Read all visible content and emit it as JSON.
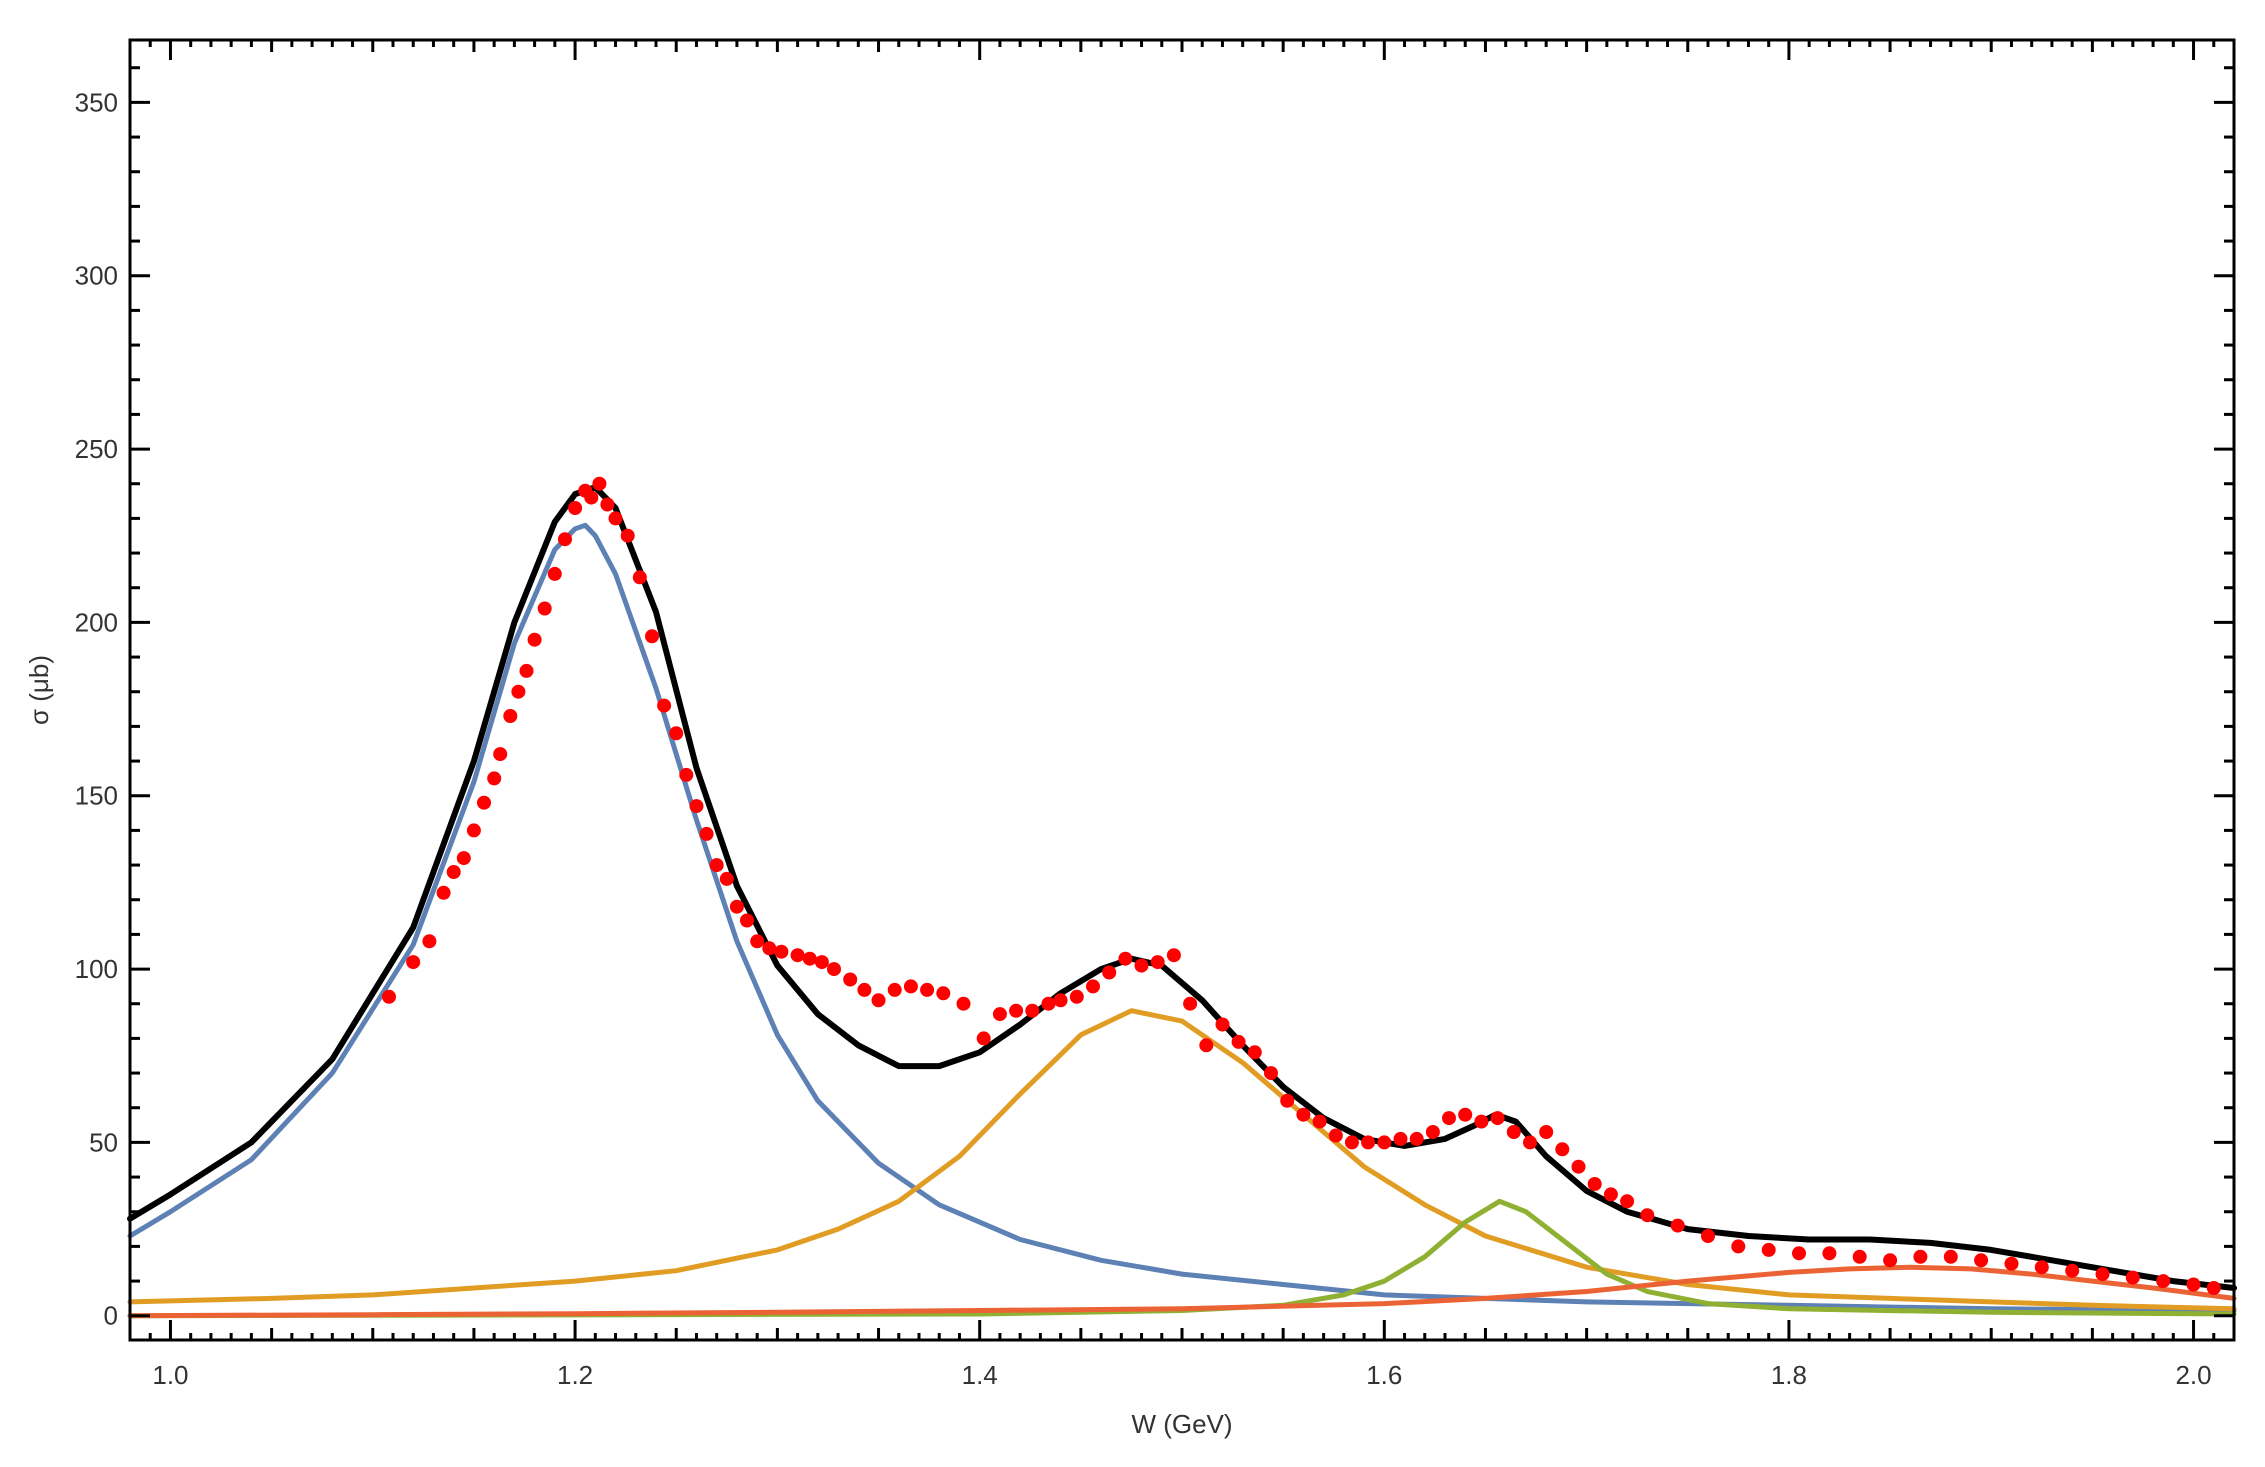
{
  "chart_data": {
    "type": "line",
    "title": "",
    "xlabel": "W (GeV)",
    "ylabel": "σ (μb)",
    "xlim": [
      0.98,
      2.02
    ],
    "ylim": [
      -7,
      368
    ],
    "x_ticks": [
      1.0,
      1.2,
      1.4,
      1.6,
      1.8,
      2.0
    ],
    "x_tick_labels": [
      "1.0",
      "1.2",
      "1.4",
      "1.6",
      "1.8",
      "2.0"
    ],
    "y_ticks": [
      0,
      50,
      100,
      150,
      200,
      250,
      300,
      350
    ],
    "y_tick_labels": [
      "0",
      "50",
      "100",
      "150",
      "200",
      "250",
      "300",
      "350"
    ],
    "grid": false,
    "legend": "none",
    "series": [
      {
        "role": "total-fit",
        "color": "#000000",
        "x": [
          0.98,
          1.0,
          1.04,
          1.08,
          1.12,
          1.15,
          1.17,
          1.19,
          1.2,
          1.21,
          1.22,
          1.24,
          1.26,
          1.28,
          1.3,
          1.32,
          1.34,
          1.36,
          1.38,
          1.4,
          1.42,
          1.44,
          1.46,
          1.475,
          1.49,
          1.51,
          1.53,
          1.55,
          1.57,
          1.59,
          1.61,
          1.63,
          1.645,
          1.655,
          1.665,
          1.68,
          1.7,
          1.72,
          1.75,
          1.78,
          1.81,
          1.84,
          1.87,
          1.9,
          1.93,
          1.96,
          1.99,
          2.02
        ],
        "y": [
          28,
          35,
          50,
          74,
          112,
          160,
          200,
          229,
          237,
          239,
          233,
          203,
          158,
          124,
          101,
          87,
          78,
          72,
          72,
          76,
          84,
          93,
          100,
          103,
          101,
          91,
          78,
          66,
          57,
          51,
          49,
          51,
          55,
          58,
          56,
          46,
          36,
          30,
          25,
          23,
          22,
          22,
          21,
          19,
          16,
          13,
          10,
          8
        ]
      },
      {
        "role": "resonance-1",
        "color": "#5D81B5",
        "x": [
          0.98,
          1.0,
          1.04,
          1.08,
          1.12,
          1.15,
          1.17,
          1.19,
          1.2,
          1.205,
          1.21,
          1.22,
          1.24,
          1.26,
          1.28,
          1.3,
          1.32,
          1.35,
          1.38,
          1.42,
          1.46,
          1.5,
          1.55,
          1.6,
          1.65,
          1.7,
          1.8,
          1.9,
          2.02
        ],
        "y": [
          23,
          30,
          45,
          70,
          107,
          154,
          194,
          221,
          227,
          228,
          225,
          214,
          181,
          143,
          108,
          81,
          62,
          44,
          32,
          22,
          16,
          12,
          9,
          6,
          5,
          4,
          3,
          2,
          1.5
        ]
      },
      {
        "role": "resonance-2",
        "color": "#E19C24",
        "x": [
          0.98,
          1.05,
          1.1,
          1.15,
          1.2,
          1.25,
          1.3,
          1.33,
          1.36,
          1.39,
          1.42,
          1.45,
          1.475,
          1.5,
          1.53,
          1.56,
          1.59,
          1.62,
          1.65,
          1.7,
          1.75,
          1.8,
          1.85,
          1.9,
          1.95,
          2.02
        ],
        "y": [
          4,
          5,
          6,
          8,
          10,
          13,
          19,
          25,
          33,
          46,
          64,
          81,
          88,
          85,
          73,
          58,
          43,
          32,
          23,
          14,
          9,
          6,
          5,
          4,
          3,
          2
        ]
      },
      {
        "role": "resonance-3",
        "color": "#8FB032",
        "x": [
          0.98,
          1.4,
          1.5,
          1.55,
          1.58,
          1.6,
          1.62,
          1.64,
          1.657,
          1.67,
          1.69,
          1.71,
          1.73,
          1.76,
          1.8,
          1.9,
          2.02
        ],
        "y": [
          0,
          0.5,
          1.5,
          3,
          6,
          10,
          17,
          27,
          33,
          30,
          21,
          12,
          7,
          3.5,
          2,
          1,
          0.5
        ]
      },
      {
        "role": "resonance-4",
        "color": "#EB6235",
        "x": [
          0.98,
          1.1,
          1.2,
          1.3,
          1.4,
          1.5,
          1.6,
          1.65,
          1.7,
          1.75,
          1.8,
          1.83,
          1.86,
          1.89,
          1.92,
          1.95,
          1.98,
          2.02
        ],
        "y": [
          0,
          0.3,
          0.6,
          1,
          1.5,
          2,
          3.5,
          5,
          7,
          10,
          12.5,
          13.5,
          14,
          13.5,
          12,
          10,
          8,
          5
        ]
      }
    ],
    "data_points": {
      "color": "#FF0000",
      "x": [
        1.108,
        1.12,
        1.128,
        1.135,
        1.14,
        1.145,
        1.15,
        1.155,
        1.16,
        1.163,
        1.168,
        1.172,
        1.176,
        1.18,
        1.185,
        1.19,
        1.195,
        1.2,
        1.205,
        1.208,
        1.212,
        1.216,
        1.22,
        1.226,
        1.232,
        1.238,
        1.244,
        1.25,
        1.255,
        1.26,
        1.265,
        1.27,
        1.275,
        1.28,
        1.285,
        1.29,
        1.296,
        1.302,
        1.31,
        1.316,
        1.322,
        1.328,
        1.336,
        1.343,
        1.35,
        1.358,
        1.366,
        1.374,
        1.382,
        1.392,
        1.402,
        1.41,
        1.418,
        1.426,
        1.434,
        1.44,
        1.448,
        1.456,
        1.464,
        1.472,
        1.48,
        1.488,
        1.496,
        1.504,
        1.512,
        1.52,
        1.528,
        1.536,
        1.544,
        1.552,
        1.56,
        1.568,
        1.576,
        1.584,
        1.592,
        1.6,
        1.608,
        1.616,
        1.624,
        1.632,
        1.64,
        1.648,
        1.656,
        1.664,
        1.672,
        1.68,
        1.688,
        1.696,
        1.704,
        1.712,
        1.72,
        1.73,
        1.745,
        1.76,
        1.775,
        1.79,
        1.805,
        1.82,
        1.835,
        1.85,
        1.865,
        1.88,
        1.895,
        1.91,
        1.925,
        1.94,
        1.955,
        1.97,
        1.985,
        2.0,
        2.01
      ],
      "y": [
        92,
        102,
        108,
        122,
        128,
        132,
        140,
        148,
        155,
        162,
        173,
        180,
        186,
        195,
        204,
        214,
        224,
        233,
        238,
        236,
        240,
        234,
        230,
        225,
        213,
        196,
        176,
        168,
        156,
        147,
        139,
        130,
        126,
        118,
        114,
        108,
        106,
        105,
        104,
        103,
        102,
        100,
        97,
        94,
        91,
        94,
        95,
        94,
        93,
        90,
        80,
        87,
        88,
        88,
        90,
        91,
        92,
        95,
        99,
        103,
        101,
        102,
        104,
        90,
        78,
        84,
        79,
        76,
        70,
        62,
        58,
        56,
        52,
        50,
        50,
        50,
        51,
        51,
        53,
        57,
        58,
        56,
        57,
        53,
        50,
        53,
        48,
        43,
        38,
        35,
        33,
        29,
        26,
        23,
        20,
        19,
        18,
        18,
        17,
        16,
        17,
        17,
        16,
        15,
        14,
        13,
        12,
        11,
        10,
        9,
        8
      ]
    }
  }
}
